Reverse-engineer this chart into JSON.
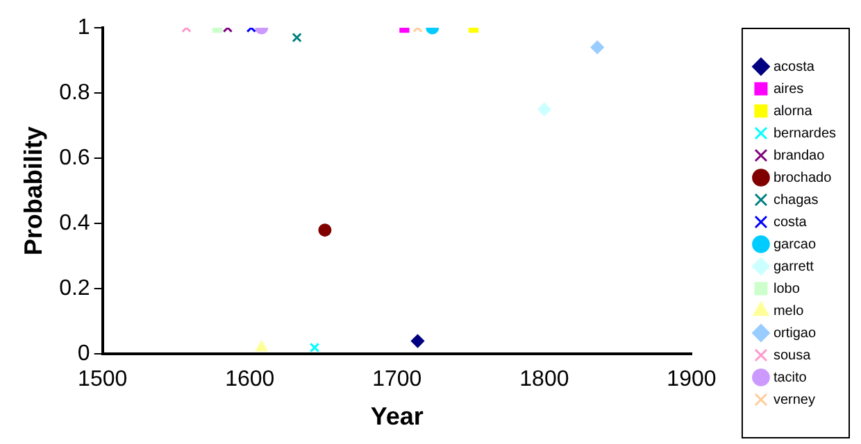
{
  "chart_data": {
    "type": "scatter",
    "xlabel": "Year",
    "ylabel": "Probability",
    "xlim": [
      1500,
      1900
    ],
    "xticks": [
      1500,
      1600,
      1700,
      1800,
      1900
    ],
    "ylim": [
      0,
      1
    ],
    "yticks": [
      0,
      0.2,
      0.4,
      0.6,
      0.8,
      1
    ],
    "grid": false,
    "legend": "right",
    "series": [
      {
        "name": "acosta",
        "color": "#000080",
        "marker": "diamond",
        "x": [
          1714
        ],
        "values": [
          0.04
        ]
      },
      {
        "name": "aires",
        "color": "#ff00ff",
        "marker": "square",
        "x": [
          1705
        ],
        "values": [
          1
        ]
      },
      {
        "name": "alorna",
        "color": "#ffff00",
        "marker": "square",
        "x": [
          1752
        ],
        "values": [
          1
        ]
      },
      {
        "name": "bernardes",
        "color": "#00ffff",
        "marker": "cross",
        "x": [
          1644
        ],
        "values": [
          0.02
        ]
      },
      {
        "name": "brandao",
        "color": "#800080",
        "marker": "cross",
        "x": [
          1585
        ],
        "values": [
          1
        ]
      },
      {
        "name": "brochado",
        "color": "#800000",
        "marker": "circle",
        "x": [
          1651
        ],
        "values": [
          0.38
        ]
      },
      {
        "name": "chagas",
        "color": "#008080",
        "marker": "cross",
        "x": [
          1632
        ],
        "values": [
          0.97
        ]
      },
      {
        "name": "costa",
        "color": "#0000ff",
        "marker": "cross",
        "x": [
          1601
        ],
        "values": [
          1
        ]
      },
      {
        "name": "garcao",
        "color": "#00ccff",
        "marker": "circle",
        "x": [
          1724
        ],
        "values": [
          1
        ]
      },
      {
        "name": "garrett",
        "color": "#ccffff",
        "marker": "diamond",
        "x": [
          1800
        ],
        "values": [
          0.75
        ]
      },
      {
        "name": "lobo",
        "color": "#ccffcc",
        "marker": "square",
        "x": [
          1578
        ],
        "values": [
          1
        ]
      },
      {
        "name": "melo",
        "color": "#ffff99",
        "marker": "triangle",
        "x": [
          1608
        ],
        "values": [
          0.02
        ]
      },
      {
        "name": "ortigao",
        "color": "#99ccff",
        "marker": "diamond",
        "x": [
          1836
        ],
        "values": [
          0.94
        ]
      },
      {
        "name": "sousa",
        "color": "#ff99cc",
        "marker": "cross",
        "x": [
          1557
        ],
        "values": [
          1
        ]
      },
      {
        "name": "tacito",
        "color": "#cc99ff",
        "marker": "circle",
        "x": [
          1608
        ],
        "values": [
          1
        ]
      },
      {
        "name": "verney",
        "color": "#ffcc99",
        "marker": "cross",
        "x": [
          1714
        ],
        "values": [
          1
        ]
      }
    ]
  }
}
